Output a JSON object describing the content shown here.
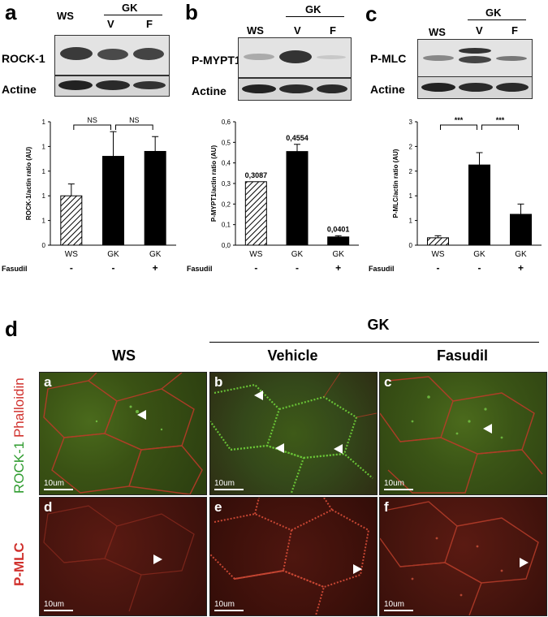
{
  "panels": {
    "a": {
      "letter": "a",
      "headers": {
        "ws": "WS",
        "gk": "GK",
        "v": "V",
        "f": "F"
      },
      "rows": [
        "ROCK-1",
        "Actine"
      ]
    },
    "b": {
      "letter": "b",
      "headers": {
        "ws": "WS",
        "gk": "GK",
        "v": "V",
        "f": "F"
      },
      "rows": [
        "P-MYPT1",
        "Actine"
      ]
    },
    "c": {
      "letter": "c",
      "headers": {
        "ws": "WS",
        "gk": "GK",
        "v": "V",
        "f": "F"
      },
      "rows": [
        "P-MLC",
        "Actine"
      ]
    }
  },
  "fasudil_label": "Fasudil",
  "chart_data": [
    {
      "type": "bar",
      "categories": [
        "WS",
        "GK",
        "GK"
      ],
      "fasudil": [
        "-",
        "-",
        "+"
      ],
      "values": [
        0.5,
        0.9,
        0.95
      ],
      "errors": [
        0.12,
        0.25,
        0.15
      ],
      "ylabel": "ROCK-1/actin ratio (AU)",
      "yticks": [
        "0",
        "1",
        "1",
        "1",
        "1",
        "1"
      ],
      "ylim": [
        0,
        1.25
      ],
      "significance": [
        {
          "from": 0,
          "to": 1,
          "label": "NS"
        },
        {
          "from": 1,
          "to": 2,
          "label": "NS"
        }
      ],
      "value_labels": []
    },
    {
      "type": "bar",
      "categories": [
        "WS",
        "GK",
        "GK"
      ],
      "fasudil": [
        "-",
        "-",
        "+"
      ],
      "values": [
        0.3087,
        0.4554,
        0.0401
      ],
      "errors": [
        0,
        0.035,
        0.006
      ],
      "ylabel": "P-MYPT1/actin ratio (AU)",
      "yticks": [
        "0,0",
        "0,1",
        "0,2",
        "0,3",
        "0,4",
        "0,5",
        "0,6"
      ],
      "ylim": [
        0,
        0.6
      ],
      "significance": [],
      "value_labels": [
        "0,3087",
        "0,4554",
        "0,0401"
      ]
    },
    {
      "type": "bar",
      "categories": [
        "WS",
        "GK",
        "GK"
      ],
      "fasudil": [
        "-",
        "-",
        "+"
      ],
      "values": [
        0.18,
        1.95,
        0.75
      ],
      "errors": [
        0.05,
        0.3,
        0.25
      ],
      "ylabel": "P-MLC/actin ratio (AU)",
      "yticks": [
        "0",
        "1",
        "1",
        "2",
        "2",
        "3"
      ],
      "ylim": [
        0,
        3
      ],
      "significance": [
        {
          "from": 0,
          "to": 1,
          "label": "***"
        },
        {
          "from": 1,
          "to": 2,
          "label": "***"
        }
      ],
      "value_labels": []
    }
  ],
  "micro": {
    "letter": "d",
    "group_label": "GK",
    "columns": [
      "WS",
      "Vehicle",
      "Fasudil"
    ],
    "row_labels": {
      "rock": "ROCK-1",
      "phalloidin": "Phalloidin",
      "pmlc": "P-MLC"
    },
    "tiles": [
      "a",
      "b",
      "c",
      "d",
      "e",
      "f"
    ],
    "scale": "10um"
  },
  "colors": {
    "rock_green": "#2e9b2e",
    "phalloidin_red": "#d0312d",
    "bar": "#000000"
  }
}
